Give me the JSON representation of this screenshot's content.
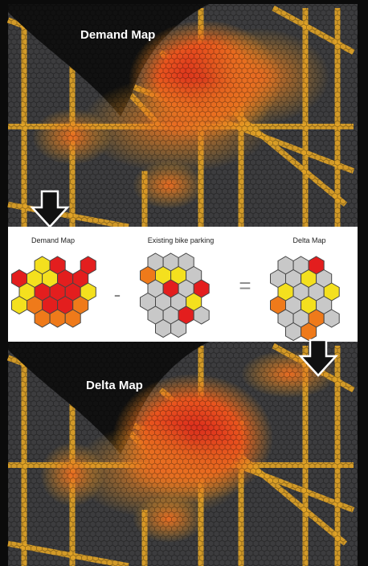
{
  "top_map": {
    "label": "Demand Map"
  },
  "legend": {
    "demand_label": "Demand Map",
    "parking_label": "Existing bike parking",
    "delta_label": "Delta Map",
    "minus": "-",
    "equals": "="
  },
  "bottom_map": {
    "label": "Delta Map"
  }
}
